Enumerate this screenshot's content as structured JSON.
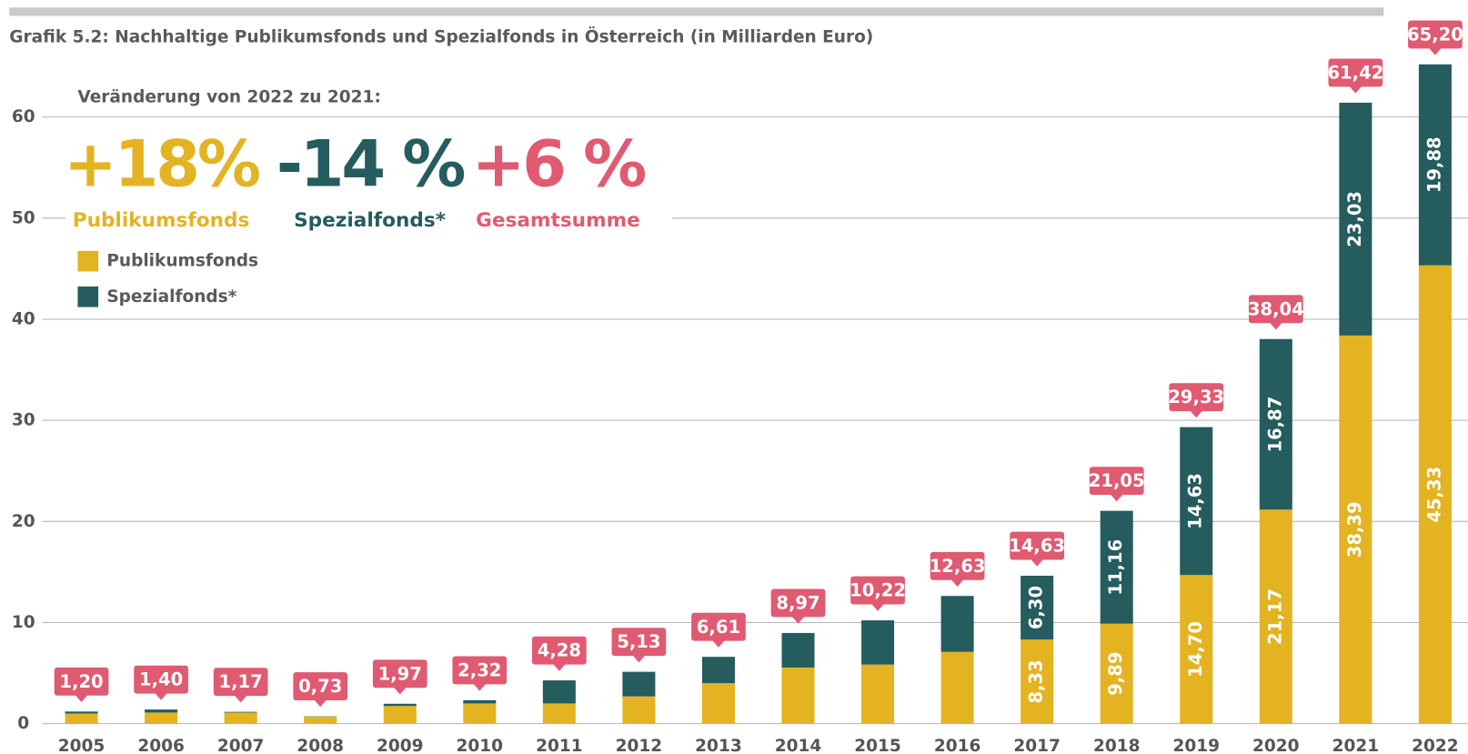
{
  "chart_data": {
    "type": "bar",
    "stacked": true,
    "title": "Grafik 5.2: Nachhaltige Publikumsfonds und Spezialfonds in Österreich (in Milliarden Euro)",
    "annotation_heading": "Veränderung von 2022 zu 2021:",
    "annotations": [
      {
        "text": "+18%",
        "label": "Publikumsfonds",
        "color": "#e3b322"
      },
      {
        "text": "-14 %",
        "label": "Spezialfonds*",
        "color": "#255c5e"
      },
      {
        "text": "+6 %",
        "label": "Gesamtsumme",
        "color": "#e05a72"
      }
    ],
    "categories": [
      "2005",
      "2006",
      "2007",
      "2008",
      "2009",
      "2010",
      "2011",
      "2012",
      "2013",
      "2014",
      "2015",
      "2016",
      "2017",
      "2018",
      "2019",
      "2020",
      "2021",
      "2022"
    ],
    "series": [
      {
        "name": "Publikumsfonds",
        "color": "#e3b322",
        "values": [
          1.0,
          1.1,
          1.1,
          0.7,
          1.75,
          2.0,
          2.0,
          2.7,
          4.0,
          5.55,
          5.85,
          7.1,
          8.33,
          9.89,
          14.7,
          21.17,
          38.39,
          45.33
        ],
        "value_labels": [
          null,
          null,
          null,
          null,
          null,
          null,
          null,
          null,
          null,
          null,
          null,
          null,
          "8,33",
          "9,89",
          "14,70",
          "21,17",
          "38,39",
          "45,33"
        ]
      },
      {
        "name": "Spezialfonds*",
        "color": "#255c5e",
        "values": [
          0.2,
          0.3,
          0.07,
          0.03,
          0.22,
          0.32,
          2.28,
          2.43,
          2.61,
          3.42,
          4.37,
          5.53,
          6.3,
          11.16,
          14.63,
          16.87,
          23.03,
          19.88
        ],
        "value_labels": [
          null,
          null,
          null,
          null,
          null,
          null,
          null,
          null,
          null,
          null,
          null,
          null,
          "6,30",
          "11,16",
          "14,63",
          "16,87",
          "23,03",
          "19,88"
        ]
      }
    ],
    "totals": [
      1.2,
      1.4,
      1.17,
      0.73,
      1.97,
      2.32,
      4.28,
      5.13,
      6.61,
      8.97,
      10.22,
      12.63,
      14.63,
      21.05,
      29.33,
      38.04,
      61.42,
      65.2
    ],
    "total_labels": [
      "1,20",
      "1,40",
      "1,17",
      "0,73",
      "1,97",
      "2,32",
      "4,28",
      "5,13",
      "6,61",
      "8,97",
      "10,22",
      "12,63",
      "14,63",
      "21,05",
      "29,33",
      "38,04",
      "61,42",
      "65,20"
    ],
    "total_color": "#e05a72",
    "ylim": [
      0,
      70
    ],
    "yticks": [
      0,
      10,
      20,
      30,
      40,
      50,
      60
    ],
    "grid": true
  }
}
